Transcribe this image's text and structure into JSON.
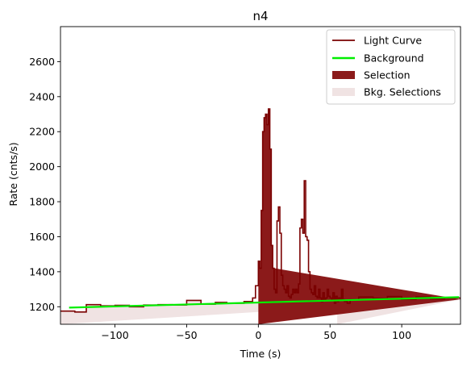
{
  "chart_data": {
    "type": "line",
    "title": "n4",
    "xlabel": "Time (s)",
    "ylabel": "Rate (cnts/s)",
    "xlim": [
      -138,
      141
    ],
    "ylim": [
      1100,
      2800
    ],
    "xticks": [
      -100,
      -50,
      0,
      50,
      100
    ],
    "yticks": [
      1200,
      1400,
      1600,
      1800,
      2000,
      2200,
      2400,
      2600
    ],
    "grid": false,
    "legend_position": "top-right",
    "colors": {
      "light_curve": "#7a0000",
      "background": "#00ee00",
      "selection": "#8b1a1a",
      "bkg_selection": "#f0e3e3"
    },
    "legend": [
      {
        "label": "Light Curve",
        "kind": "line",
        "color": "#7a0000"
      },
      {
        "label": "Background",
        "kind": "line",
        "color": "#00ee00"
      },
      {
        "label": "Selection",
        "kind": "patch",
        "color": "#8b1a1a"
      },
      {
        "label": "Bkg. Selections",
        "kind": "patch",
        "color": "#f0e3e3"
      }
    ],
    "background_fit": {
      "x": [
        -132,
        140
      ],
      "y": [
        1195,
        1255
      ]
    },
    "selection_range": [
      0,
      11
    ],
    "bkg_selection_ranges": [
      [
        -138,
        -22
      ],
      [
        55,
        141
      ]
    ],
    "light_curve": {
      "edges": [
        -138,
        -128,
        -120,
        -110,
        -100,
        -90,
        -80,
        -70,
        -60,
        -50,
        -40,
        -30,
        -22,
        -10,
        -4,
        -2,
        0,
        1,
        2,
        3,
        4,
        5,
        6,
        7,
        8,
        9,
        10,
        11,
        12,
        13,
        14,
        15,
        16,
        17,
        18,
        19,
        20,
        21,
        22,
        23,
        24,
        25,
        26,
        27,
        28,
        29,
        30,
        31,
        32,
        33,
        34,
        35,
        36,
        37,
        38,
        39,
        40,
        41,
        42,
        43,
        44,
        45,
        46,
        47,
        48,
        49,
        50,
        51,
        52,
        53,
        54,
        55,
        56,
        57,
        58,
        59,
        60,
        62,
        64,
        70,
        80,
        90,
        100,
        110,
        120,
        130,
        141
      ],
      "values": [
        1175,
        1170,
        1212,
        1205,
        1208,
        1200,
        1210,
        1212,
        1210,
        1236,
        1215,
        1225,
        1220,
        1230,
        1250,
        1320,
        1460,
        1420,
        1750,
        2200,
        2280,
        2300,
        2240,
        2330,
        2100,
        1550,
        1420,
        1300,
        1280,
        1690,
        1770,
        1620,
        1380,
        1320,
        1300,
        1280,
        1320,
        1260,
        1250,
        1270,
        1300,
        1280,
        1300,
        1280,
        1330,
        1650,
        1700,
        1620,
        1920,
        1600,
        1580,
        1400,
        1300,
        1280,
        1270,
        1320,
        1260,
        1250,
        1300,
        1250,
        1230,
        1280,
        1240,
        1250,
        1300,
        1260,
        1250,
        1240,
        1280,
        1220,
        1260,
        1230,
        1250,
        1240,
        1300,
        1240,
        1230,
        1220,
        1240,
        1255,
        1248,
        1258,
        1242,
        1256,
        1245,
        1250,
        1242
      ]
    }
  }
}
